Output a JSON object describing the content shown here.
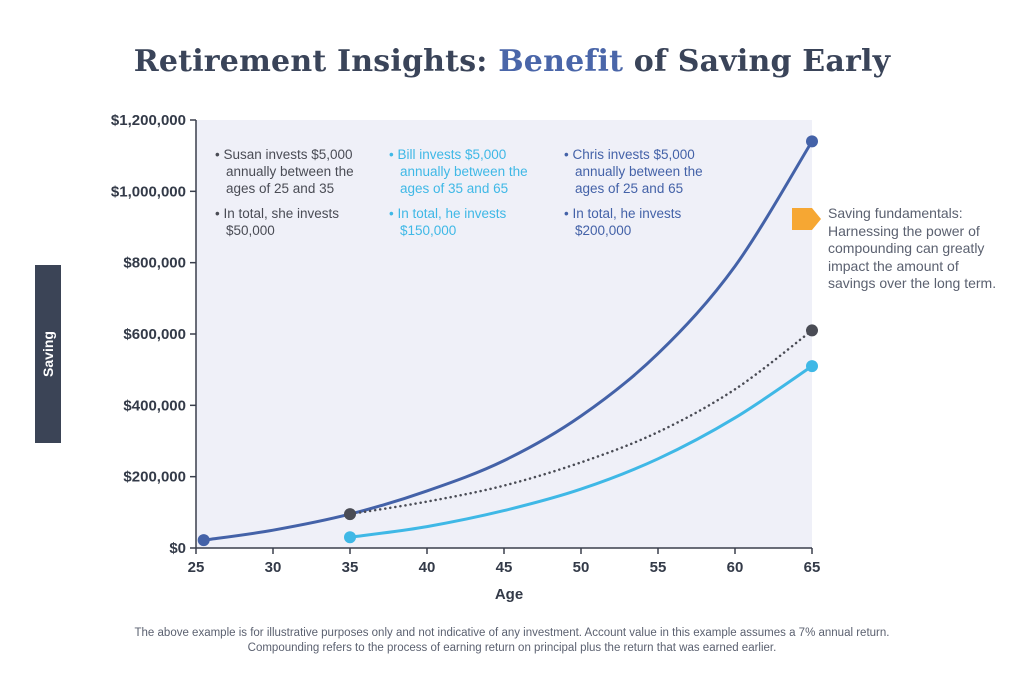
{
  "title": {
    "prefix": "Retirement Insights: ",
    "highlight": "Benefit",
    "suffix": " of Saving Early"
  },
  "side_note": "Saving fundamentals: Harnessing the power of compounding can greatly impact the amount of savings over the long term.",
  "footnote": {
    "line1": "The above example is for illustrative purposes only and not indicative of any investment. Account value in this example assumes a 7% annual return.",
    "line2": "Compounding refers to the process of earning return on principal plus the return that was earned earlier."
  },
  "colors": {
    "chris": "#4462a8",
    "bill": "#3fb8e6",
    "susan": "#4a4c55",
    "plot_bg": "#eff0f8",
    "arrow": "#f6a733",
    "axis_text": "#333a48"
  },
  "chart_data": {
    "type": "line",
    "xlabel": "Age",
    "ylabel": "Saving",
    "xlim": [
      25,
      65
    ],
    "ylim": [
      0,
      1200000
    ],
    "x_ticks": [
      25,
      30,
      35,
      40,
      45,
      50,
      55,
      60,
      65
    ],
    "y_ticks": [
      0,
      200000,
      400000,
      600000,
      800000,
      1000000,
      1200000
    ],
    "y_tick_labels": [
      "$0",
      "$200,000",
      "$400,000",
      "$600,000",
      "$800,000",
      "$1,000,000",
      "$1,200,000"
    ],
    "grid": true,
    "series": [
      {
        "key": "chris",
        "x": [
          25.5,
          30,
          35,
          40,
          45,
          50,
          55,
          60,
          65
        ],
        "y": [
          22000,
          50000,
          95000,
          160000,
          245000,
          370000,
          545000,
          790000,
          1140000
        ],
        "end_marker": true
      },
      {
        "key": "bill",
        "x": [
          35,
          40,
          45,
          50,
          55,
          60,
          65
        ],
        "y": [
          30000,
          60000,
          105000,
          165000,
          250000,
          365000,
          510000
        ],
        "start_marker": true,
        "end_marker": true
      },
      {
        "key": "susan",
        "x": [
          35,
          40,
          45,
          50,
          55,
          60,
          65
        ],
        "y": [
          95000,
          130000,
          175000,
          240000,
          325000,
          445000,
          610000
        ],
        "start_marker": true,
        "end_marker": true,
        "dotted": true
      }
    ],
    "legend": [
      {
        "key": "susan",
        "lines": [
          "• Susan invests $5,000",
          "annually between the",
          "ages of 25 and 35",
          "• In total, she invests",
          "$50,000"
        ]
      },
      {
        "key": "bill",
        "lines": [
          "• Bill invests $5,000",
          "annually between the",
          "ages of 35 and 65",
          "• In total, he invests",
          "$150,000"
        ]
      },
      {
        "key": "chris",
        "lines": [
          "• Chris invests $5,000",
          "annually between the",
          "ages of 25 and 65",
          "• In total, he invests",
          "$200,000"
        ]
      }
    ]
  }
}
